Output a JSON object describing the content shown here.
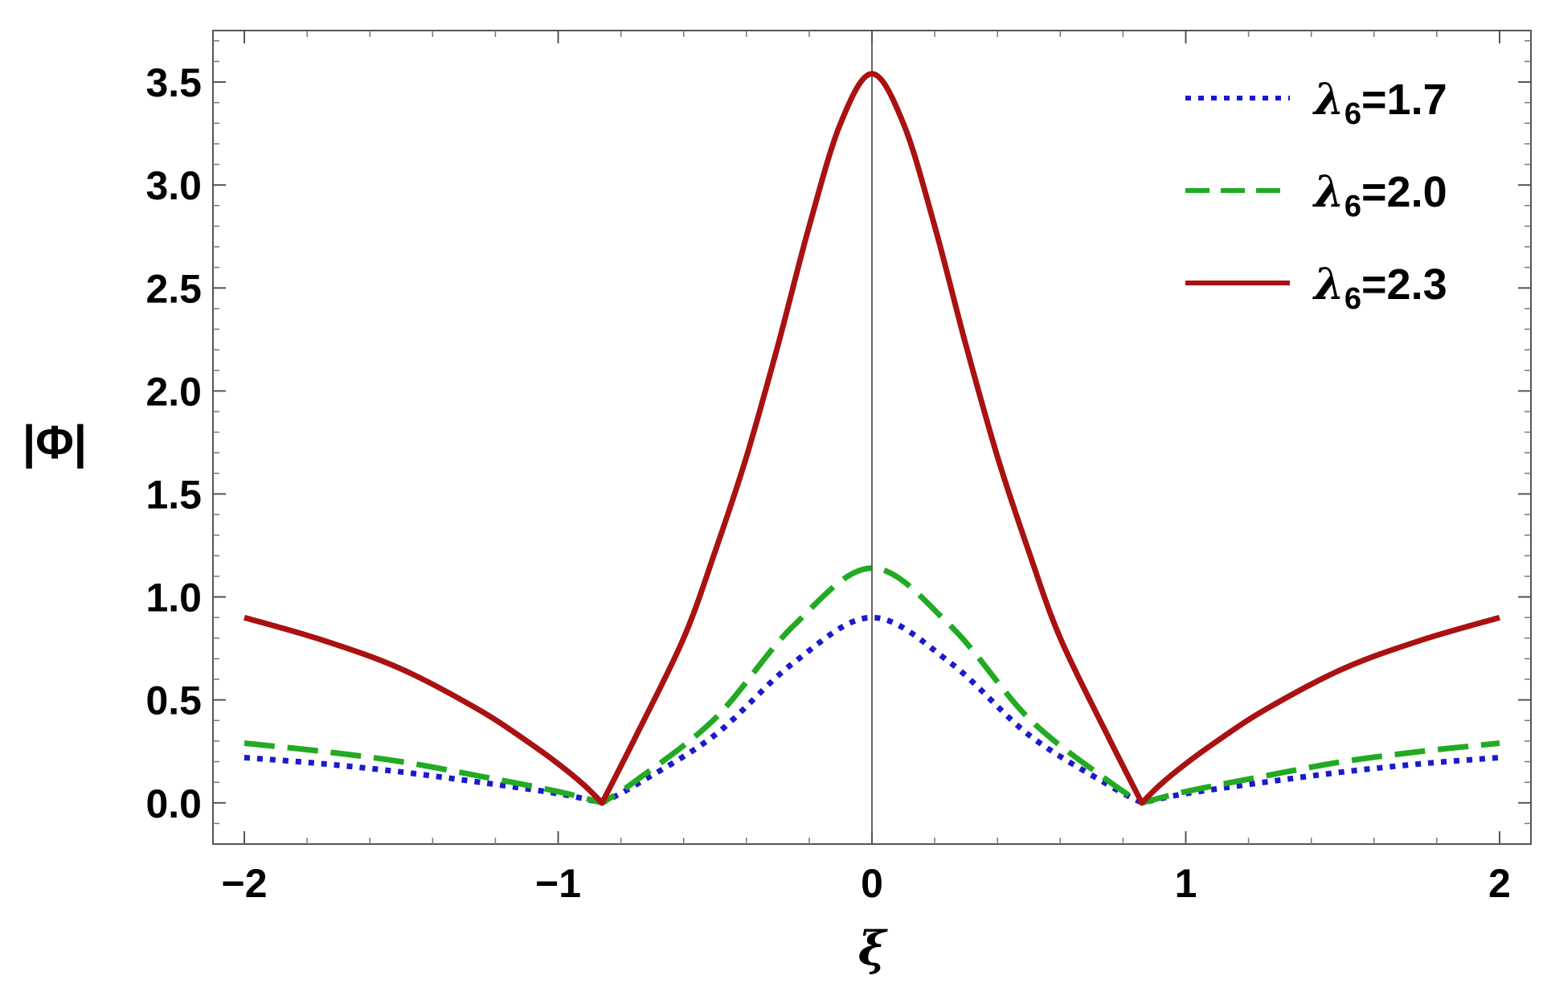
{
  "chart_data": {
    "type": "line",
    "xlabel": "ξ",
    "ylabel": "|Φ|",
    "xlim": [
      -2.1,
      2.1
    ],
    "ylim": [
      -0.2,
      3.75
    ],
    "x_ticks": [
      {
        "value": -2,
        "label": "−2"
      },
      {
        "value": -1,
        "label": "−1"
      },
      {
        "value": 0,
        "label": "0"
      },
      {
        "value": 1,
        "label": "1"
      },
      {
        "value": 2,
        "label": "2"
      }
    ],
    "y_ticks": [
      {
        "value": 0.0,
        "label": "0.0"
      },
      {
        "value": 0.5,
        "label": "0.5"
      },
      {
        "value": 1.0,
        "label": "1.0"
      },
      {
        "value": 1.5,
        "label": "1.5"
      },
      {
        "value": 2.0,
        "label": "2.0"
      },
      {
        "value": 2.5,
        "label": "2.5"
      },
      {
        "value": 3.0,
        "label": "3.0"
      },
      {
        "value": 3.5,
        "label": "3.5"
      }
    ],
    "grid": false,
    "legend_position": "top-right",
    "series": [
      {
        "name": "λ6=1.7",
        "legend_symbol": "λ",
        "legend_sub": "6",
        "legend_value": "=1.7",
        "color": "#1a1acc",
        "style": "dotted",
        "x": [
          -2.0,
          -1.75,
          -1.5,
          -1.25,
          -1.0,
          -0.86,
          -0.75,
          -0.5,
          -0.25,
          0.0,
          0.25,
          0.5,
          0.75,
          0.86,
          1.0,
          1.25,
          1.5,
          1.75,
          2.0
        ],
        "y": [
          0.22,
          0.19,
          0.15,
          0.1,
          0.045,
          0.0,
          0.09,
          0.33,
          0.68,
          0.9,
          0.68,
          0.33,
          0.09,
          0.0,
          0.045,
          0.1,
          0.15,
          0.19,
          0.22
        ]
      },
      {
        "name": "λ6=2.0",
        "legend_symbol": "λ",
        "legend_sub": "6",
        "legend_value": "=2.0",
        "color": "#22aa22",
        "style": "dashed",
        "x": [
          -2.0,
          -1.75,
          -1.5,
          -1.25,
          -1.0,
          -0.86,
          -0.75,
          -0.5,
          -0.25,
          0.0,
          0.25,
          0.5,
          0.75,
          0.86,
          1.0,
          1.25,
          1.5,
          1.75,
          2.0
        ],
        "y": [
          0.29,
          0.25,
          0.2,
          0.13,
          0.055,
          0.0,
          0.11,
          0.41,
          0.86,
          1.14,
          0.86,
          0.41,
          0.11,
          0.0,
          0.055,
          0.13,
          0.2,
          0.25,
          0.29
        ]
      },
      {
        "name": "λ6=2.3",
        "legend_symbol": "λ",
        "legend_sub": "6",
        "legend_value": "=2.3",
        "color": "#aa1111",
        "style": "solid",
        "x": [
          -2.0,
          -1.75,
          -1.5,
          -1.25,
          -1.1,
          -1.0,
          -0.92,
          -0.86,
          -0.75,
          -0.6,
          -0.5,
          -0.4,
          -0.3,
          -0.2,
          -0.1,
          0.0,
          0.1,
          0.2,
          0.3,
          0.4,
          0.5,
          0.6,
          0.75,
          0.86,
          0.92,
          1.0,
          1.1,
          1.25,
          1.5,
          1.75,
          2.0
        ],
        "y": [
          0.9,
          0.79,
          0.65,
          0.45,
          0.3,
          0.19,
          0.09,
          0.0,
          0.33,
          0.8,
          1.22,
          1.68,
          2.22,
          2.8,
          3.3,
          3.54,
          3.3,
          2.8,
          2.22,
          1.68,
          1.22,
          0.8,
          0.33,
          0.0,
          0.09,
          0.19,
          0.3,
          0.45,
          0.65,
          0.79,
          0.9
        ]
      }
    ]
  }
}
